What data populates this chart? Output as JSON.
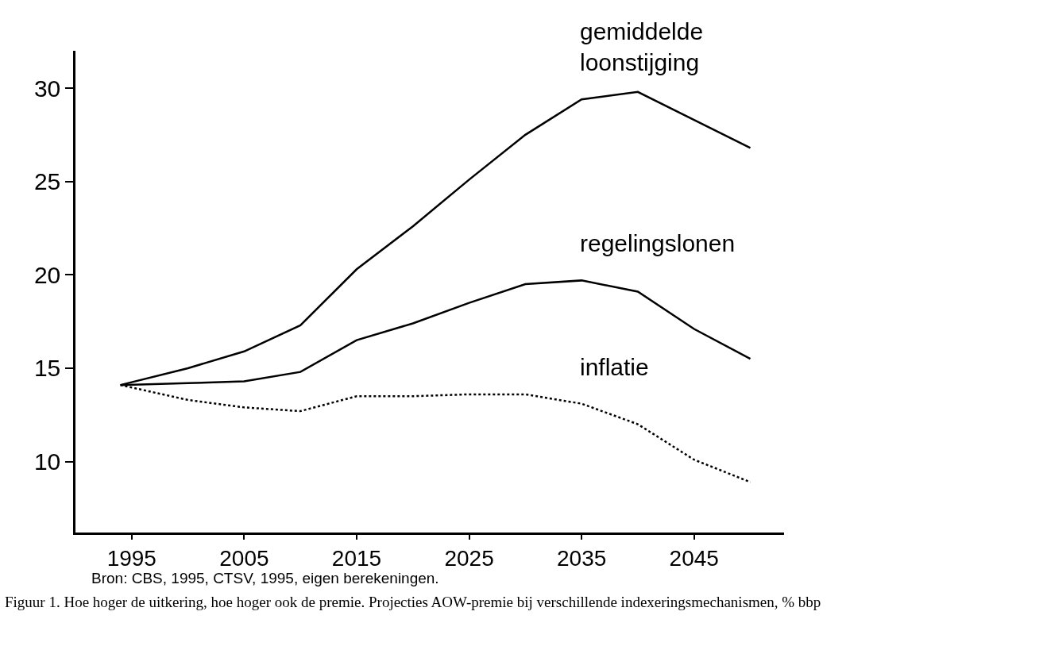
{
  "chart_data": {
    "type": "line",
    "x": [
      1994,
      2000,
      2005,
      2010,
      2015,
      2020,
      2025,
      2030,
      2035,
      2040,
      2045,
      2050
    ],
    "series": [
      {
        "name": "gemiddelde\nloonstijging",
        "color": "#000000",
        "line_style": "solid",
        "values": [
          14.1,
          15.0,
          15.9,
          17.3,
          20.3,
          22.6,
          25.1,
          27.5,
          29.4,
          29.8,
          28.3,
          26.8
        ]
      },
      {
        "name": "regelingslonen",
        "color": "#000000",
        "line_style": "solid",
        "values": [
          14.1,
          14.2,
          14.3,
          14.8,
          16.5,
          17.4,
          18.5,
          19.5,
          19.7,
          19.1,
          17.1,
          15.5
        ]
      },
      {
        "name": "inflatie",
        "color": "#000000",
        "line_style": "dotted",
        "values": [
          14.1,
          13.3,
          12.9,
          12.7,
          13.5,
          13.5,
          13.6,
          13.6,
          13.1,
          12.0,
          10.1,
          8.9
        ]
      }
    ],
    "xlim": [
      1990,
      2053
    ],
    "xticks": [
      1995,
      2005,
      2015,
      2025,
      2035,
      2045
    ],
    "ylim": [
      6.2,
      32
    ],
    "yticks": [
      10,
      15,
      20,
      25,
      30
    ],
    "legend": false,
    "marker": "none",
    "annotations": [
      "Bron: CBS, 1995, CTSV, 1995, eigen berekeningen.",
      "Figuur 1. Hoe hoger de uitkering, hoe hoger ook de premie. Projecties AOW-premie bij verschillende indexeringsmechanismen, % bbp"
    ]
  }
}
